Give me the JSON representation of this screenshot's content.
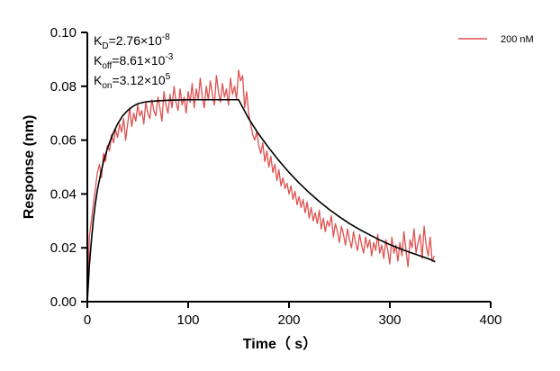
{
  "chart_data": {
    "type": "line",
    "xlabel": "Time（ s）",
    "ylabel": "Response (nm)",
    "xlim": [
      0,
      400
    ],
    "ylim": [
      0,
      0.1
    ],
    "x_ticks": [
      0,
      100,
      200,
      300,
      400
    ],
    "x_tick_labels": [
      "0",
      "100",
      "200",
      "300",
      "400"
    ],
    "y_ticks": [
      0,
      0.02,
      0.04,
      0.06,
      0.08,
      0.1
    ],
    "y_tick_labels": [
      "0.00",
      "0.02",
      "0.04",
      "0.06",
      "0.08",
      "0.10"
    ],
    "grid": false,
    "legend_position": "top-right",
    "kinetics": [
      {
        "base": "K",
        "sub": "D",
        "value": "=2.76×10",
        "exp": "-8"
      },
      {
        "base": "K",
        "sub": "off",
        "value": "=8.61×10",
        "exp": "-3"
      },
      {
        "base": "K",
        "sub": "on",
        "value": "=3.12×10",
        "exp": "5"
      }
    ],
    "series": [
      {
        "name": "200 nM",
        "kind": "measured",
        "color": "#e05050",
        "x": [
          0,
          2,
          4,
          6,
          8,
          10,
          12,
          14,
          16,
          18,
          20,
          22,
          24,
          26,
          28,
          30,
          32,
          34,
          36,
          38,
          40,
          42,
          44,
          46,
          48,
          50,
          52,
          54,
          56,
          58,
          60,
          62,
          64,
          66,
          68,
          70,
          72,
          74,
          76,
          78,
          80,
          82,
          84,
          86,
          88,
          90,
          92,
          94,
          96,
          98,
          100,
          102,
          104,
          106,
          108,
          110,
          112,
          114,
          116,
          118,
          120,
          122,
          124,
          126,
          128,
          130,
          132,
          134,
          136,
          138,
          140,
          142,
          144,
          146,
          148,
          150,
          152,
          154,
          156,
          158,
          160,
          162,
          164,
          166,
          168,
          170,
          172,
          174,
          176,
          178,
          180,
          182,
          184,
          186,
          188,
          190,
          192,
          194,
          196,
          198,
          200,
          202,
          204,
          206,
          208,
          210,
          212,
          214,
          216,
          218,
          220,
          222,
          224,
          226,
          228,
          230,
          232,
          234,
          236,
          238,
          240,
          242,
          244,
          246,
          248,
          250,
          252,
          254,
          256,
          258,
          260,
          262,
          264,
          266,
          268,
          270,
          272,
          274,
          276,
          278,
          280,
          282,
          284,
          286,
          288,
          290,
          292,
          294,
          296,
          298,
          300,
          302,
          304,
          306,
          308,
          310,
          312,
          314,
          316,
          318,
          320,
          322,
          324,
          326,
          328,
          330,
          332,
          334,
          336,
          338,
          340,
          342,
          344
        ],
        "y": [
          0.0,
          0.024,
          0.03,
          0.036,
          0.042,
          0.048,
          0.051,
          0.046,
          0.055,
          0.052,
          0.058,
          0.056,
          0.062,
          0.059,
          0.064,
          0.061,
          0.066,
          0.063,
          0.068,
          0.06,
          0.066,
          0.072,
          0.065,
          0.07,
          0.067,
          0.073,
          0.069,
          0.071,
          0.066,
          0.074,
          0.07,
          0.068,
          0.075,
          0.071,
          0.069,
          0.076,
          0.072,
          0.067,
          0.078,
          0.073,
          0.07,
          0.077,
          0.072,
          0.08,
          0.074,
          0.071,
          0.079,
          0.073,
          0.076,
          0.07,
          0.078,
          0.074,
          0.081,
          0.072,
          0.079,
          0.075,
          0.083,
          0.076,
          0.072,
          0.08,
          0.075,
          0.082,
          0.077,
          0.073,
          0.084,
          0.078,
          0.074,
          0.081,
          0.076,
          0.079,
          0.073,
          0.083,
          0.077,
          0.08,
          0.075,
          0.086,
          0.082,
          0.084,
          0.072,
          0.078,
          0.07,
          0.066,
          0.062,
          0.06,
          0.063,
          0.058,
          0.055,
          0.059,
          0.052,
          0.056,
          0.05,
          0.054,
          0.048,
          0.051,
          0.045,
          0.049,
          0.043,
          0.046,
          0.042,
          0.044,
          0.04,
          0.043,
          0.038,
          0.041,
          0.036,
          0.039,
          0.035,
          0.038,
          0.033,
          0.037,
          0.031,
          0.035,
          0.03,
          0.033,
          0.029,
          0.034,
          0.027,
          0.031,
          0.026,
          0.03,
          0.028,
          0.032,
          0.024,
          0.029,
          0.026,
          0.022,
          0.028,
          0.025,
          0.021,
          0.027,
          0.023,
          0.02,
          0.026,
          0.022,
          0.019,
          0.025,
          0.021,
          0.018,
          0.024,
          0.02,
          0.023,
          0.017,
          0.022,
          0.019,
          0.025,
          0.018,
          0.021,
          0.016,
          0.023,
          0.019,
          0.014,
          0.024,
          0.018,
          0.021,
          0.015,
          0.022,
          0.017,
          0.026,
          0.019,
          0.013,
          0.023,
          0.02,
          0.027,
          0.018,
          0.022,
          0.025,
          0.016,
          0.028,
          0.021,
          0.017,
          0.024,
          0.015,
          0.017
        ]
      },
      {
        "name": "",
        "kind": "fit",
        "color": "#000000",
        "x": [
          0,
          2,
          4,
          6,
          8,
          10,
          13,
          16,
          20,
          25,
          30,
          35,
          40,
          45,
          50,
          55,
          60,
          70,
          80,
          90,
          100,
          110,
          120,
          130,
          140,
          150,
          155,
          160,
          170,
          180,
          190,
          200,
          210,
          220,
          230,
          240,
          250,
          260,
          270,
          280,
          290,
          300,
          310,
          320,
          330,
          340,
          345
        ],
        "y": [
          0.0,
          0.0135,
          0.0225,
          0.0305,
          0.0365,
          0.0415,
          0.047,
          0.052,
          0.057,
          0.062,
          0.066,
          0.069,
          0.071,
          0.0725,
          0.0735,
          0.074,
          0.0743,
          0.0746,
          0.0748,
          0.0749,
          0.075,
          0.075,
          0.075,
          0.075,
          0.075,
          0.075,
          0.0715,
          0.068,
          0.0622,
          0.0571,
          0.0524,
          0.048,
          0.0441,
          0.0405,
          0.0372,
          0.0342,
          0.0315,
          0.029,
          0.0268,
          0.0248,
          0.0229,
          0.0212,
          0.0197,
          0.0183,
          0.017,
          0.0157,
          0.0148
        ]
      }
    ]
  }
}
